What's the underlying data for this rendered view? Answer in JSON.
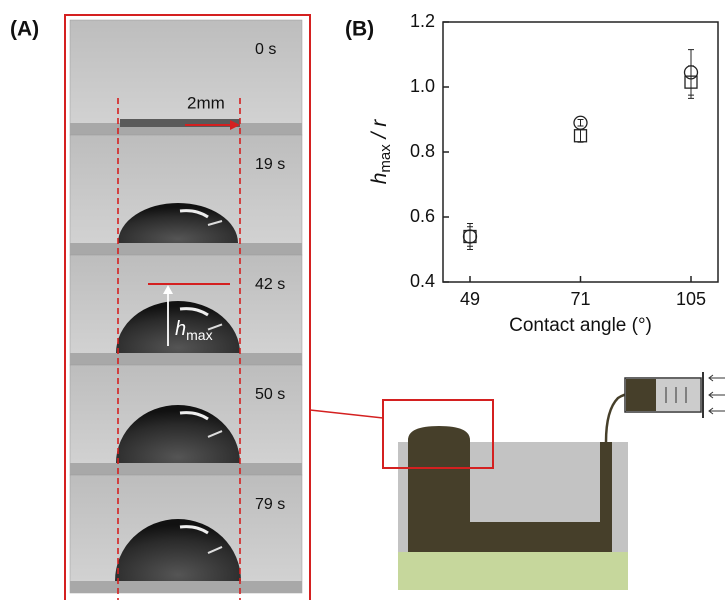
{
  "panel_a": {
    "label": "(A)",
    "times": [
      "0 s",
      "19 s",
      "42 s",
      "50 s",
      "79 s"
    ],
    "scale_bar": "2mm",
    "height_label": {
      "main": "h",
      "sub": "max"
    }
  },
  "chart_data": {
    "type": "scatter",
    "panel_label": "(B)",
    "x_label": "Contact angle (°)",
    "y_label": {
      "main": "h",
      "sub": "max",
      "rest": " / r"
    },
    "categories": [
      "49",
      "71",
      "105"
    ],
    "series": [
      {
        "marker": "circle",
        "color": "#222222",
        "values": [
          0.54,
          0.89,
          1.045
        ],
        "errors": [
          0.04,
          0.01,
          0.07
        ]
      },
      {
        "marker": "square",
        "color": "#222222",
        "values": [
          0.54,
          0.85,
          1.015
        ],
        "errors": [
          0.03,
          0.02,
          0.05
        ]
      }
    ],
    "ylim": [
      0.4,
      1.2
    ],
    "yticks": [
      0.4,
      0.6,
      0.8,
      {
        "value": 1.0,
        "label": "1.0"
      },
      1.2
    ]
  }
}
